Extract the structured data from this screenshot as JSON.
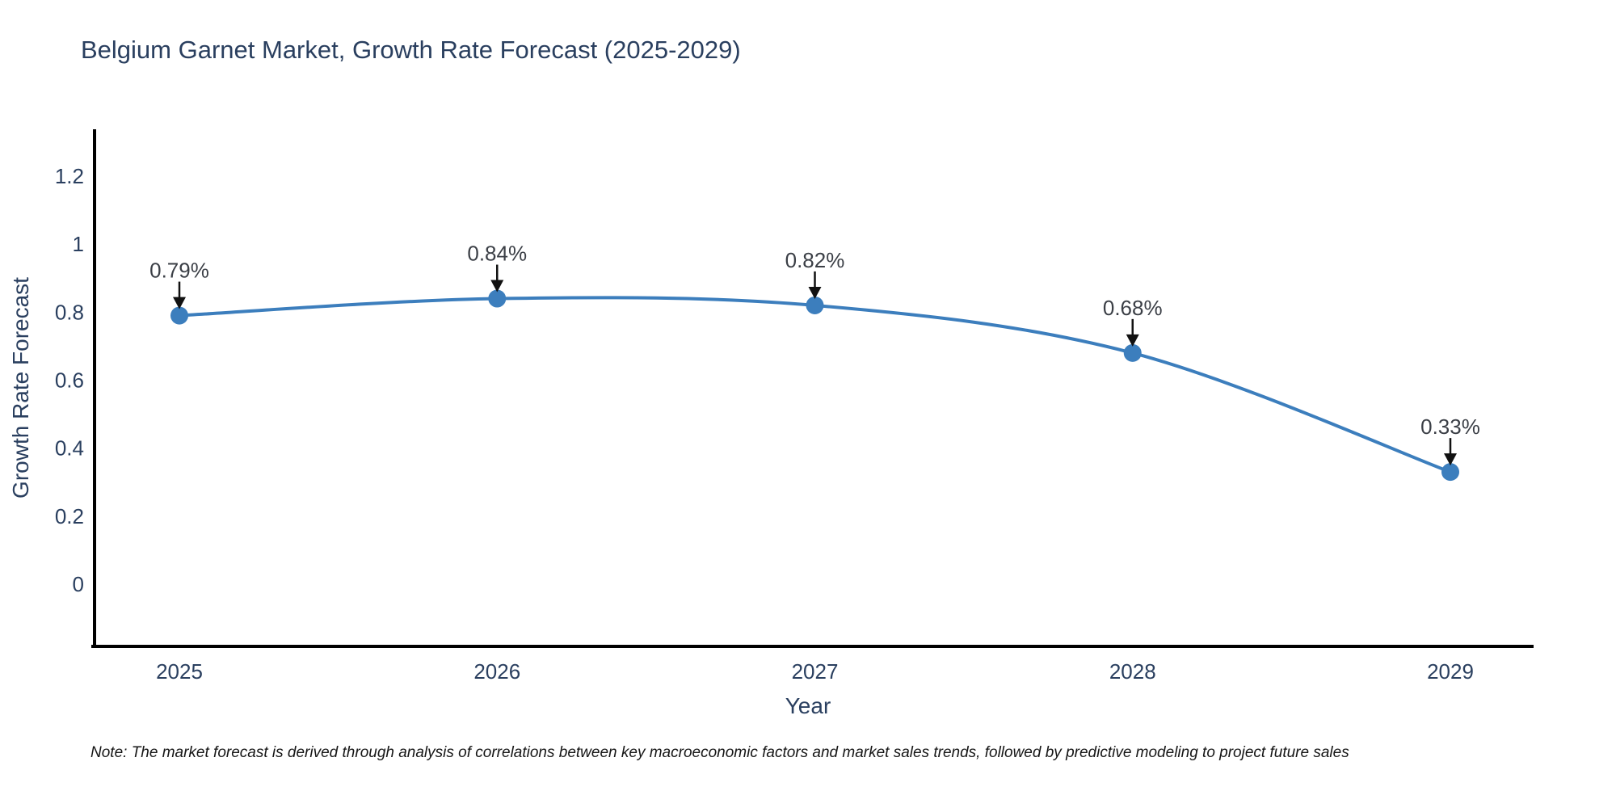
{
  "chart_data": {
    "type": "line",
    "title": "Belgium Garnet Market, Growth Rate Forecast (2025-2029)",
    "xlabel": "Year",
    "ylabel": "Growth Rate Forecast",
    "x": [
      2025,
      2026,
      2027,
      2028,
      2029
    ],
    "x_tick_labels": [
      "2025",
      "2026",
      "2027",
      "2028",
      "2029"
    ],
    "y_ticks": [
      0,
      0.2,
      0.4,
      0.6,
      0.8,
      1,
      1.2
    ],
    "y_tick_labels": [
      "0",
      "0.2",
      "0.4",
      "0.6",
      "0.8",
      "1",
      "1.2"
    ],
    "ylim": [
      -0.18,
      1.34
    ],
    "grid": false,
    "legend": "none",
    "line_shape": "spline",
    "series": [
      {
        "name": "Growth Rate Forecast",
        "values": [
          0.79,
          0.84,
          0.82,
          0.68,
          0.33
        ],
        "labels": [
          "0.79%",
          "0.84%",
          "0.82%",
          "0.68%",
          "0.33%"
        ]
      }
    ],
    "colors": {
      "line": "#3c7ebd",
      "marker": "#3c7ebd",
      "axis": "#000000",
      "tick_text": "#2a3f5f",
      "title_text": "#2a3f5f",
      "annotation_text": "#3b3f46",
      "annotation_arrow": "#111111",
      "background": "#ffffff"
    }
  },
  "footnote": "Note: The market forecast is derived through analysis of correlations between key macroeconomic factors and market sales trends, followed by predictive modeling to project future sales"
}
